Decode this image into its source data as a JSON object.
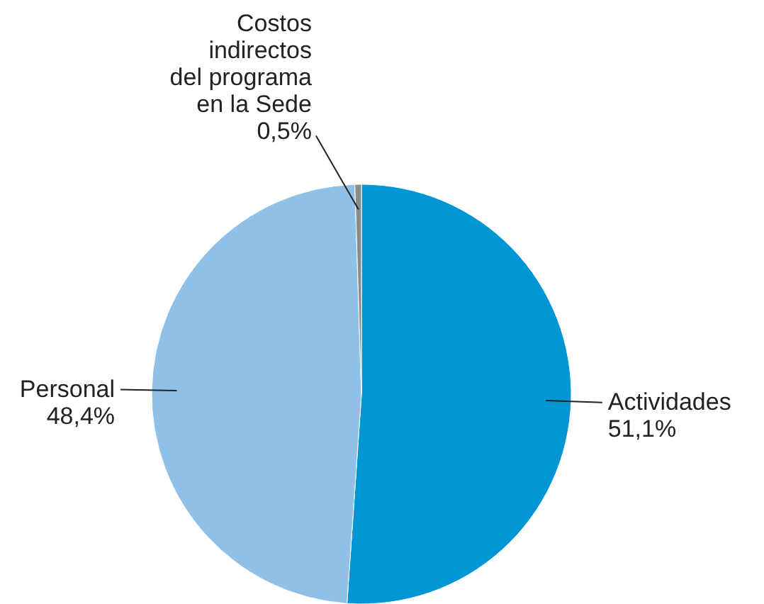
{
  "chart_data": {
    "type": "pie",
    "categories": [
      "Actividades",
      "Personal",
      "Costos indirectos del programa en la Sede"
    ],
    "values": [
      51.1,
      48.4,
      0.5
    ],
    "colors": [
      "#0096d6",
      "#8fc1e8",
      "#8c8c8c"
    ],
    "value_labels": [
      "51,1%",
      "48,4%",
      "0,5%"
    ]
  }
}
